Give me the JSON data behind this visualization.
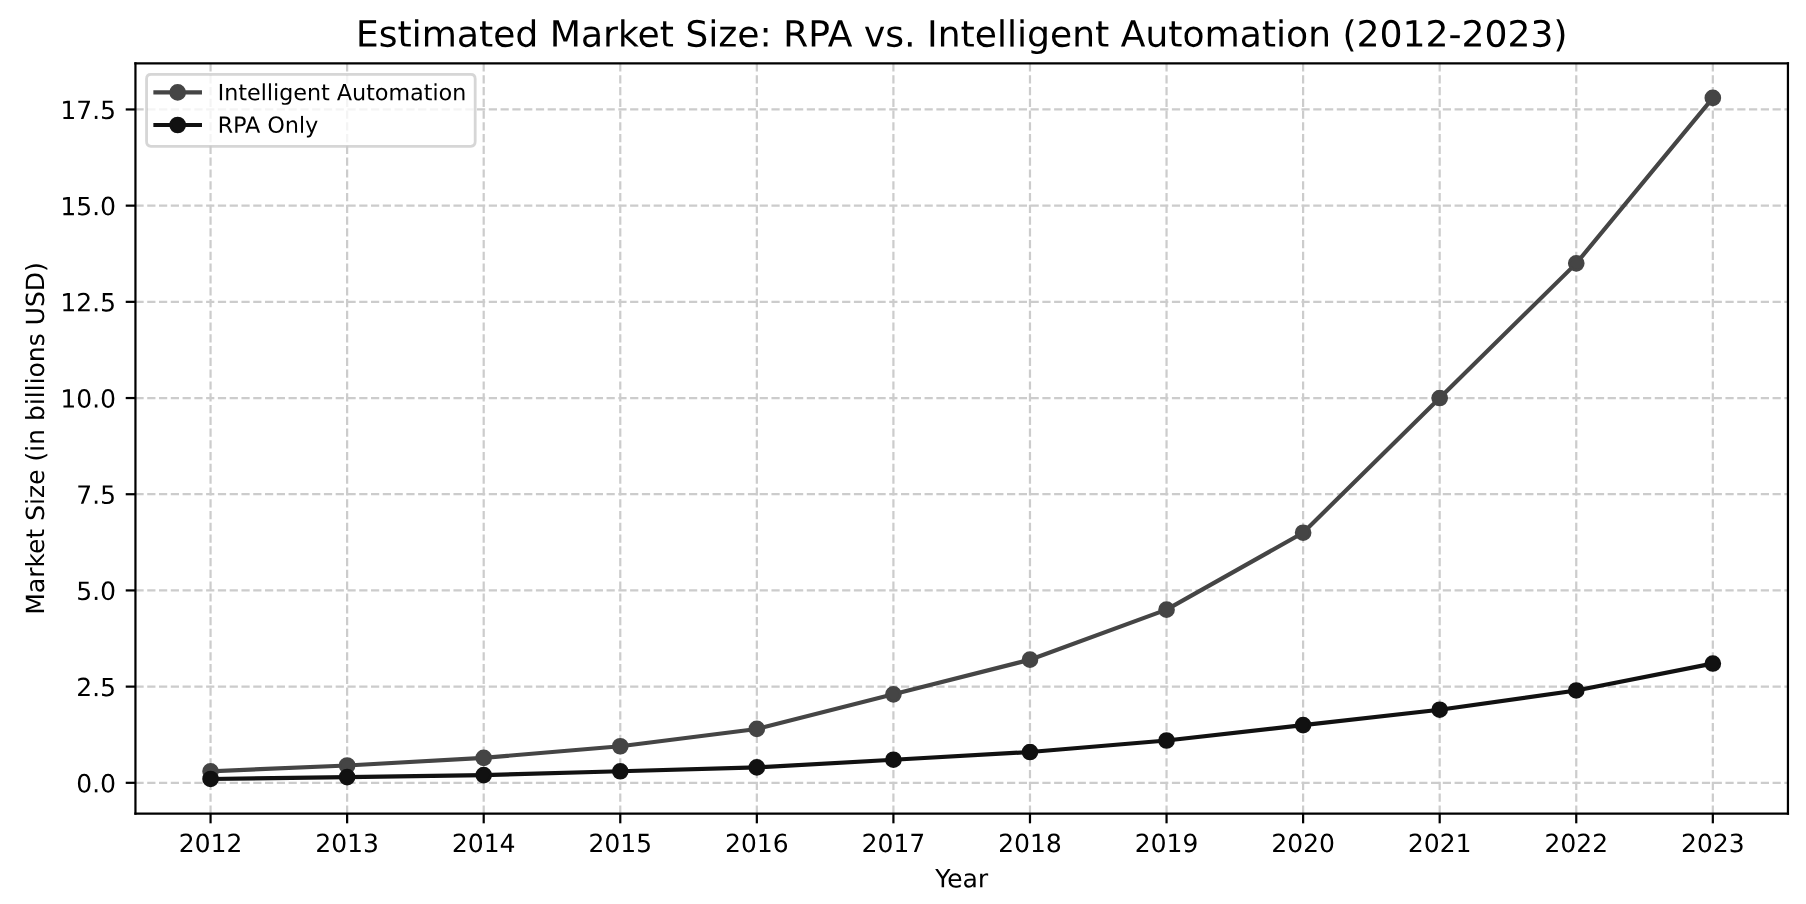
{
  "chart_data": {
    "type": "line",
    "title": "Estimated Market Size: RPA vs. Intelligent Automation (2012-2023)",
    "xlabel": "Year",
    "ylabel": "Market Size (in billions USD)",
    "x": [
      2012,
      2013,
      2014,
      2015,
      2016,
      2017,
      2018,
      2019,
      2020,
      2021,
      2022,
      2023
    ],
    "series": [
      {
        "name": "Intelligent Automation",
        "color": "#454545",
        "values": [
          0.3,
          0.45,
          0.65,
          0.95,
          1.4,
          2.3,
          3.2,
          4.5,
          6.5,
          10.0,
          13.5,
          17.8
        ]
      },
      {
        "name": "RPA Only",
        "color": "#111111",
        "values": [
          0.1,
          0.15,
          0.2,
          0.3,
          0.4,
          0.6,
          0.8,
          1.1,
          1.5,
          1.9,
          2.4,
          3.1
        ]
      }
    ],
    "xlim": [
      2011.45,
      2023.55
    ],
    "xticks": [
      2012,
      2013,
      2014,
      2015,
      2016,
      2017,
      2018,
      2019,
      2020,
      2021,
      2022,
      2023
    ],
    "ylim": [
      -0.8,
      18.7
    ],
    "yticks": [
      {
        "value": 0,
        "label": "0.0"
      },
      2.5,
      {
        "value": 5,
        "label": "5.0"
      },
      7.5,
      {
        "value": 10,
        "label": "10.0"
      },
      12.5,
      {
        "value": 15,
        "label": "15.0"
      },
      17.5
    ],
    "grid": true,
    "legend": "top left",
    "marker": "circle",
    "line_style": "solid"
  }
}
